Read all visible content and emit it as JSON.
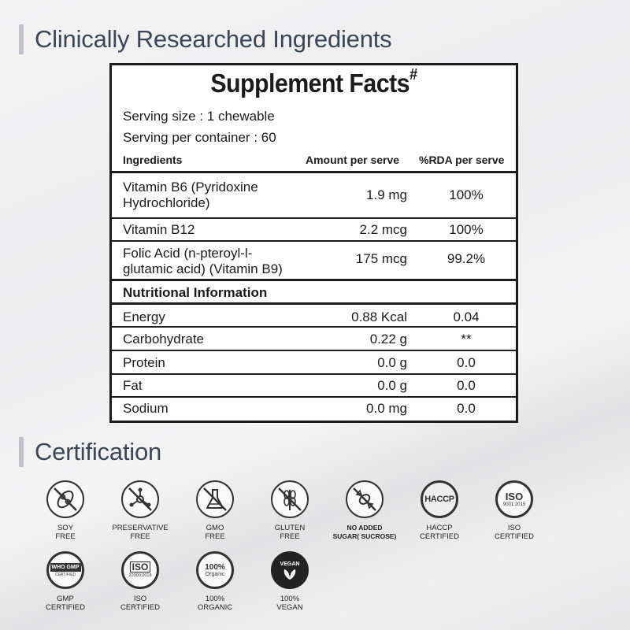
{
  "headings": {
    "ingredients": "Clinically Researched Ingredients",
    "certification": "Certification"
  },
  "facts": {
    "title": "Supplement Facts",
    "title_mark": "#",
    "serving_size": "Serving size : 1 chewable",
    "servings_per_container": "Serving per container : 60",
    "columns": {
      "ingredients": "Ingredients",
      "amount": "Amount per serve",
      "rda": "%RDA per serve"
    },
    "ingredients": [
      {
        "name_line1": "Vitamin B6 (Pyridoxine",
        "name_line2": "Hydrochloride)",
        "amount": "1.9 mg",
        "rda": "100%"
      },
      {
        "name_line1": "Vitamin B12",
        "name_line2": "",
        "amount": "2.2 mcg",
        "rda": "100%"
      },
      {
        "name_line1": "Folic Acid (n-pteroyl-l-",
        "name_line2": "glutamic acid) (Vitamin B9)",
        "amount": "175 mcg",
        "rda": "99.2%"
      }
    ],
    "nutrition_heading": "Nutritional Information",
    "nutrition": [
      {
        "name": "Energy",
        "amount": "0.88 Kcal",
        "rda": "0.04"
      },
      {
        "name": "Carbohydrate",
        "amount": "0.22 g",
        "rda": "**"
      },
      {
        "name": "Protein",
        "amount": "0.0 g",
        "rda": "0.0"
      },
      {
        "name": "Fat",
        "amount": "0.0 g",
        "rda": "0.0"
      },
      {
        "name": "Sodium",
        "amount": "0.0 mg",
        "rda": "0.0"
      }
    ]
  },
  "certifications": [
    {
      "icon": "soy-free-icon",
      "line1": "SOY",
      "line2": "FREE"
    },
    {
      "icon": "preservative-free-icon",
      "line1": "PRESERVATIVE",
      "line2": "FREE"
    },
    {
      "icon": "gmo-free-icon",
      "line1": "GMO",
      "line2": "FREE"
    },
    {
      "icon": "gluten-free-icon",
      "line1": "GLUTEN",
      "line2": "FREE"
    },
    {
      "icon": "no-added-sugar-icon",
      "line1": "NO ADDED",
      "line2": "SUGAR( SUCROSE)"
    },
    {
      "icon": "haccp-icon",
      "line1": "HACCP",
      "line2": "CERTIFIED",
      "badge_text": "HACCP"
    },
    {
      "icon": "iso-9001-icon",
      "line1": "ISO",
      "line2": "CERTIFIED",
      "badge_text": "ISO",
      "badge_sub": "9001:2015"
    },
    {
      "icon": "who-gmp-icon",
      "line1": "GMP",
      "line2": "CERTIFIED",
      "badge_text": "WHO GMP",
      "badge_sub": "CERTIFIED"
    },
    {
      "icon": "iso-22000-icon",
      "line1": "ISO",
      "line2": "CERTIFIED",
      "badge_text": "ISO",
      "badge_sub": "22000:2018"
    },
    {
      "icon": "organic-icon",
      "line1": "100%",
      "line2": "ORGANIC",
      "badge_text": "100%",
      "badge_sub": "Organic"
    },
    {
      "icon": "vegan-icon",
      "line1": "100%",
      "line2": "VEGAN",
      "badge_text": "VEGAN"
    }
  ],
  "colors": {
    "heading_text": "#3b4658",
    "heading_bar": "#c4c0cf",
    "table_border": "#1b1b1b"
  }
}
